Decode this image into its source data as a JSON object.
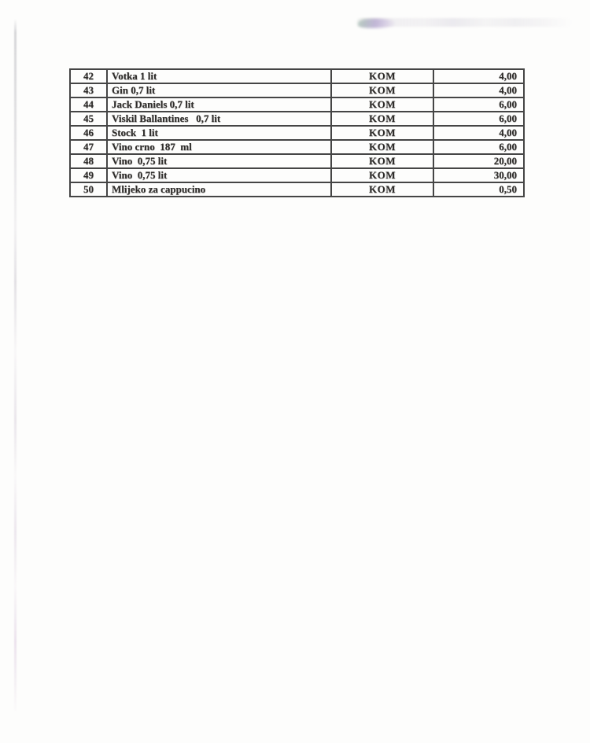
{
  "price_table": {
    "rows": [
      {
        "num": "42",
        "name": "Votka 1 lit",
        "unit": "KOM",
        "price": "4,00"
      },
      {
        "num": "43",
        "name": "Gin 0,7 lit",
        "unit": "KOM",
        "price": "4,00"
      },
      {
        "num": "44",
        "name": "Jack Daniels 0,7 lit",
        "unit": "KOM",
        "price": "6,00"
      },
      {
        "num": "45",
        "name": "Viskil Ballantines   0,7 lit",
        "unit": "KOM",
        "price": "6,00"
      },
      {
        "num": "46",
        "name": "Stock  1 lit",
        "unit": "KOM",
        "price": "4,00"
      },
      {
        "num": "47",
        "name": "Vino crno  187  ml",
        "unit": "KOM",
        "price": "6,00"
      },
      {
        "num": "48",
        "name": "Vino  0,75 lit",
        "unit": "KOM",
        "price": "20,00"
      },
      {
        "num": "49",
        "name": "Vino  0,75 lit",
        "unit": "KOM",
        "price": "30,00"
      },
      {
        "num": "50",
        "name": "Mlijeko za cappucino",
        "unit": "KOM",
        "price": "0,50"
      }
    ]
  },
  "colors": {
    "paper": "#fdfdfc",
    "ink": "#2e2c2a",
    "table_border": "#454545",
    "scan_edge_line": "#c3c0ca",
    "smudge_teal": "#8fae9f",
    "smudge_purple": "#b39fd2"
  }
}
